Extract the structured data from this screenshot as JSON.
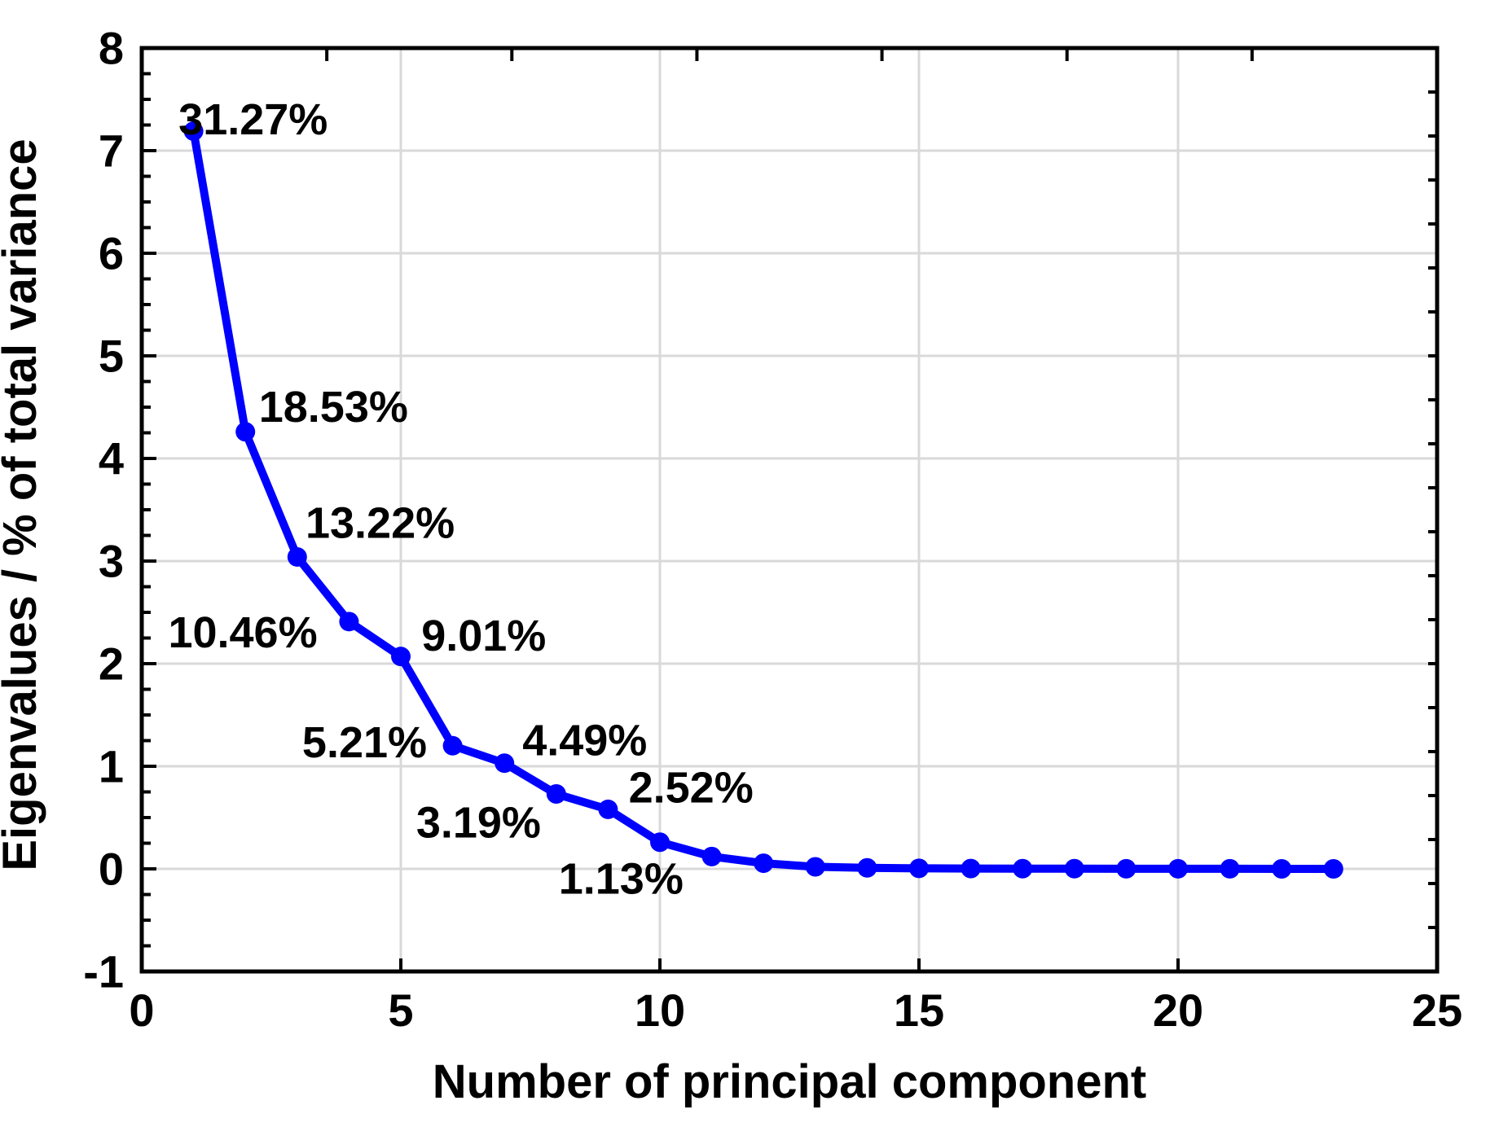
{
  "figure": {
    "background": "#FFFFFF"
  },
  "chart_data": {
    "type": "line",
    "title": "",
    "xlabel": "Number of principal component",
    "ylabel": "Eigenvalues / % of total variance",
    "xlim": [
      0,
      25
    ],
    "ylim": [
      -1,
      8
    ],
    "x_ticks": [
      0,
      5,
      10,
      15,
      20,
      25
    ],
    "y_ticks": [
      -1,
      0,
      1,
      2,
      3,
      4,
      5,
      6,
      7,
      8
    ],
    "y_minor_tick_step": 0.25,
    "grid": "on",
    "grid_x": [
      5,
      10,
      15,
      20
    ],
    "grid_y": [
      0,
      1,
      2,
      3,
      4,
      5,
      6,
      7
    ],
    "top_axis_divisions": 7,
    "right_axis_divisions": 21,
    "legend": "none",
    "series": [
      {
        "name": "Eigenvalues",
        "color": "#0000FF",
        "marker": "circle",
        "x": [
          1,
          2,
          3,
          4,
          5,
          6,
          7,
          8,
          9,
          10,
          11,
          12,
          13,
          14,
          15,
          16,
          17,
          18,
          19,
          20,
          21,
          22,
          23
        ],
        "y": [
          7.19,
          4.26,
          3.04,
          2.41,
          2.07,
          1.2,
          1.03,
          0.73,
          0.58,
          0.26,
          0.12,
          0.055,
          0.02,
          0.01,
          0.005,
          0.003,
          0.002,
          0.002,
          0.001,
          0.001,
          0.001,
          0.0,
          0.0
        ]
      }
    ],
    "point_labels": [
      {
        "text": "31.27%",
        "x": 2.15,
        "y": 7.3
      },
      {
        "text": "18.53%",
        "x": 3.7,
        "y": 4.5
      },
      {
        "text": "13.22%",
        "x": 4.6,
        "y": 3.37
      },
      {
        "text": "10.46%",
        "x": 1.95,
        "y": 2.3
      },
      {
        "text": "9.01%",
        "x": 6.6,
        "y": 2.27
      },
      {
        "text": "5.21%",
        "x": 4.3,
        "y": 1.23
      },
      {
        "text": "4.49%",
        "x": 8.55,
        "y": 1.25
      },
      {
        "text": "3.19%",
        "x": 6.5,
        "y": 0.45
      },
      {
        "text": "2.52%",
        "x": 10.6,
        "y": 0.79
      },
      {
        "text": "1.13%",
        "x": 9.25,
        "y": -0.1
      }
    ],
    "colors": {
      "line": "#0000FF",
      "grid": "#D9D9D9",
      "axis": "#000000",
      "text": "#000000",
      "background": "#FFFFFF"
    }
  }
}
